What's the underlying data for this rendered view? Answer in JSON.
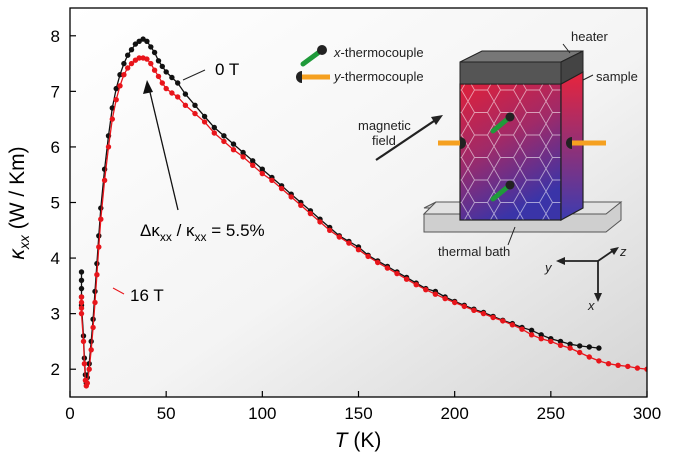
{
  "chart_data": {
    "type": "line",
    "xlabel": {
      "italic": "T",
      "rest": " (K)"
    },
    "ylabel": {
      "italic": "κ",
      "sub": "xx",
      "rest": " (W / Km)"
    },
    "xlim": [
      0,
      300
    ],
    "ylim": [
      1.5,
      8.5
    ],
    "xticks": [
      0,
      50,
      100,
      150,
      200,
      250,
      300
    ],
    "yticks": [
      2,
      3,
      4,
      5,
      6,
      7,
      8
    ],
    "series": [
      {
        "name": "0 T",
        "color": "#111111",
        "points": [
          [
            6,
            3.75
          ],
          [
            6,
            3.6
          ],
          [
            6,
            3.45
          ],
          [
            6,
            3.3
          ],
          [
            6,
            3.15
          ],
          [
            7,
            2.6
          ],
          [
            7.5,
            2.2
          ],
          [
            8,
            1.9
          ],
          [
            8.5,
            1.75
          ],
          [
            9,
            1.85
          ],
          [
            10,
            2.1
          ],
          [
            11,
            2.5
          ],
          [
            12,
            2.9
          ],
          [
            13,
            3.4
          ],
          [
            14,
            3.9
          ],
          [
            15,
            4.4
          ],
          [
            16,
            4.9
          ],
          [
            18,
            5.6
          ],
          [
            20,
            6.2
          ],
          [
            22,
            6.7
          ],
          [
            24,
            7.05
          ],
          [
            26,
            7.3
          ],
          [
            28,
            7.5
          ],
          [
            30,
            7.65
          ],
          [
            32,
            7.75
          ],
          [
            34,
            7.85
          ],
          [
            36,
            7.9
          ],
          [
            38,
            7.94
          ],
          [
            40,
            7.9
          ],
          [
            42,
            7.8
          ],
          [
            44,
            7.7
          ],
          [
            46,
            7.55
          ],
          [
            48,
            7.45
          ],
          [
            50,
            7.35
          ],
          [
            53,
            7.25
          ],
          [
            56,
            7.15
          ],
          [
            60,
            6.95
          ],
          [
            65,
            6.75
          ],
          [
            70,
            6.55
          ],
          [
            75,
            6.35
          ],
          [
            80,
            6.2
          ],
          [
            85,
            6.05
          ],
          [
            90,
            5.9
          ],
          [
            95,
            5.75
          ],
          [
            100,
            5.6
          ],
          [
            105,
            5.45
          ],
          [
            110,
            5.3
          ],
          [
            115,
            5.15
          ],
          [
            120,
            5.0
          ],
          [
            125,
            4.85
          ],
          [
            130,
            4.7
          ],
          [
            135,
            4.55
          ],
          [
            140,
            4.4
          ],
          [
            145,
            4.3
          ],
          [
            150,
            4.2
          ],
          [
            155,
            4.05
          ],
          [
            160,
            3.95
          ],
          [
            165,
            3.85
          ],
          [
            170,
            3.75
          ],
          [
            175,
            3.65
          ],
          [
            180,
            3.55
          ],
          [
            185,
            3.45
          ],
          [
            190,
            3.4
          ],
          [
            195,
            3.3
          ],
          [
            200,
            3.22
          ],
          [
            205,
            3.15
          ],
          [
            210,
            3.08
          ],
          [
            215,
            3.02
          ],
          [
            220,
            2.95
          ],
          [
            225,
            2.88
          ],
          [
            230,
            2.82
          ],
          [
            235,
            2.75
          ],
          [
            240,
            2.7
          ],
          [
            245,
            2.62
          ],
          [
            250,
            2.55
          ],
          [
            255,
            2.5
          ],
          [
            260,
            2.45
          ],
          [
            265,
            2.42
          ],
          [
            270,
            2.4
          ],
          [
            275,
            2.38
          ]
        ]
      },
      {
        "name": "16 T",
        "color": "#e8151b",
        "points": [
          [
            6,
            3.3
          ],
          [
            6,
            3.2
          ],
          [
            6,
            3.1
          ],
          [
            6,
            3.0
          ],
          [
            7,
            2.5
          ],
          [
            7.5,
            2.1
          ],
          [
            8,
            1.8
          ],
          [
            8.5,
            1.7
          ],
          [
            9,
            1.75
          ],
          [
            10,
            2.0
          ],
          [
            11,
            2.35
          ],
          [
            12,
            2.75
          ],
          [
            13,
            3.2
          ],
          [
            14,
            3.7
          ],
          [
            15,
            4.2
          ],
          [
            16,
            4.7
          ],
          [
            18,
            5.4
          ],
          [
            20,
            6.0
          ],
          [
            22,
            6.5
          ],
          [
            24,
            6.85
          ],
          [
            26,
            7.1
          ],
          [
            28,
            7.3
          ],
          [
            30,
            7.42
          ],
          [
            32,
            7.5
          ],
          [
            34,
            7.56
          ],
          [
            36,
            7.6
          ],
          [
            38,
            7.6
          ],
          [
            40,
            7.58
          ],
          [
            42,
            7.5
          ],
          [
            44,
            7.38
          ],
          [
            46,
            7.27
          ],
          [
            48,
            7.15
          ],
          [
            50,
            7.05
          ],
          [
            53,
            6.97
          ],
          [
            56,
            6.9
          ],
          [
            60,
            6.75
          ],
          [
            65,
            6.6
          ],
          [
            70,
            6.45
          ],
          [
            75,
            6.25
          ],
          [
            80,
            6.1
          ],
          [
            85,
            5.95
          ],
          [
            90,
            5.82
          ],
          [
            95,
            5.67
          ],
          [
            100,
            5.52
          ],
          [
            105,
            5.4
          ],
          [
            110,
            5.25
          ],
          [
            115,
            5.1
          ],
          [
            120,
            4.95
          ],
          [
            125,
            4.8
          ],
          [
            130,
            4.65
          ],
          [
            135,
            4.5
          ],
          [
            140,
            4.38
          ],
          [
            145,
            4.27
          ],
          [
            150,
            4.15
          ],
          [
            155,
            4.03
          ],
          [
            160,
            3.92
          ],
          [
            165,
            3.82
          ],
          [
            170,
            3.72
          ],
          [
            175,
            3.62
          ],
          [
            180,
            3.52
          ],
          [
            185,
            3.43
          ],
          [
            190,
            3.35
          ],
          [
            195,
            3.27
          ],
          [
            200,
            3.2
          ],
          [
            205,
            3.13
          ],
          [
            210,
            3.06
          ],
          [
            215,
            3.0
          ],
          [
            220,
            2.93
          ],
          [
            225,
            2.87
          ],
          [
            230,
            2.8
          ],
          [
            235,
            2.72
          ],
          [
            240,
            2.62
          ],
          [
            245,
            2.55
          ],
          [
            250,
            2.5
          ],
          [
            255,
            2.43
          ],
          [
            260,
            2.38
          ],
          [
            265,
            2.3
          ],
          [
            270,
            2.22
          ],
          [
            275,
            2.15
          ],
          [
            280,
            2.1
          ],
          [
            285,
            2.07
          ],
          [
            290,
            2.05
          ],
          [
            295,
            2.02
          ],
          [
            300,
            2.0
          ]
        ]
      }
    ],
    "annotations": {
      "label_0T": "0 T",
      "label_16T": "16 T",
      "delta_text": {
        "d": "Δκ",
        "s1": "xx",
        "mid": " / κ",
        "s2": "xx",
        "rest": " = 5.5%"
      }
    }
  },
  "inset": {
    "legend_x_thermocouple": {
      "italic": "x",
      "rest": "-thermocouple"
    },
    "legend_y_thermocouple": {
      "italic": "y",
      "rest": "-thermocouple"
    },
    "heater_label": "heater",
    "sample_label": "sample",
    "magnetic_field_label_1": "magnetic",
    "magnetic_field_label_2": "field",
    "thermal_bath_label": "thermal bath",
    "axis_x": "x",
    "axis_y": "y",
    "axis_z": "z",
    "colors": {
      "thermocouple_green": "#1f9a3a",
      "thermocouple_orange": "#f5a020",
      "heater": "#555555",
      "sample_top": "#e0203a",
      "sample_bottom": "#3a34a8",
      "bath": "#cfcfcf"
    }
  }
}
